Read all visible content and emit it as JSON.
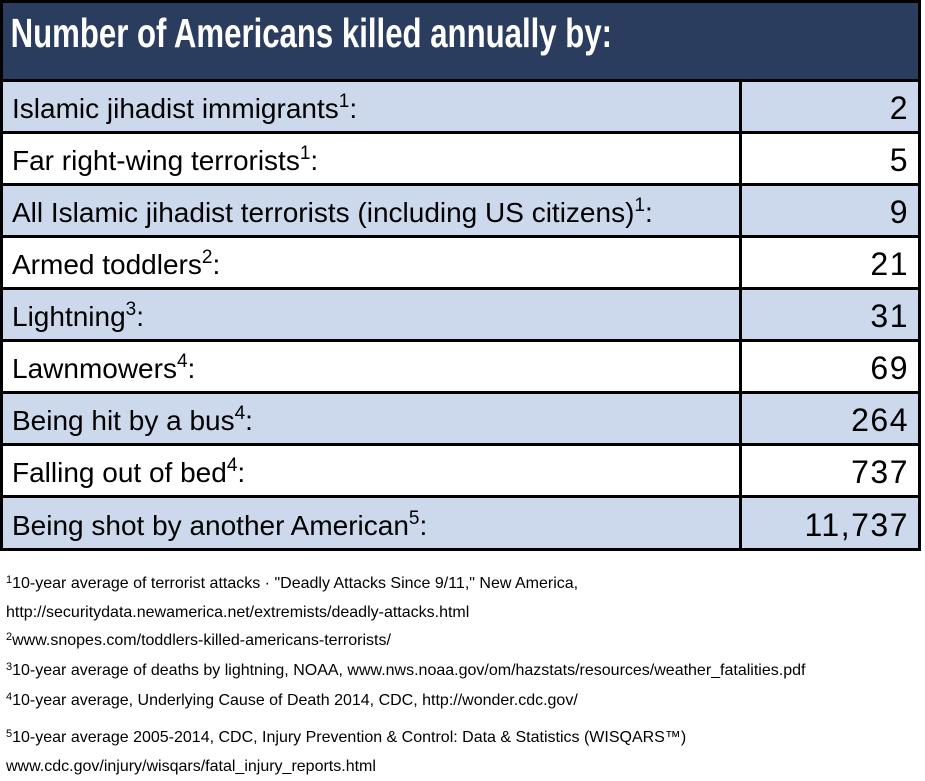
{
  "colors": {
    "header_bg": "#2b3d5f",
    "header_text": "#ffffff",
    "row_alt_bg": "#ccd9ec",
    "row_bg": "#ffffff",
    "border": "#000000",
    "text": "#000000"
  },
  "header": {
    "title": "Number of Americans killed annually by:"
  },
  "table": {
    "colon": ":",
    "rows": [
      {
        "label": "Islamic jihadist immigrants",
        "sup": "1",
        "value": "2"
      },
      {
        "label": "Far right-wing terrorists",
        "sup": "1",
        "value": "5"
      },
      {
        "label": "All Islamic jihadist terrorists (including US citizens)",
        "sup": "1",
        "value": "9"
      },
      {
        "label": "Armed toddlers",
        "sup": "2",
        "value": "21"
      },
      {
        "label": "Lightning",
        "sup": "3",
        "value": "31"
      },
      {
        "label": "Lawnmowers",
        "sup": "4",
        "value": "69"
      },
      {
        "label": "Being hit by a bus",
        "sup": "4",
        "value": "264"
      },
      {
        "label": "Falling out of bed",
        "sup": "4",
        "value": "737"
      },
      {
        "label": "Being shot by another American",
        "sup": "5",
        "value": "11,737"
      }
    ]
  },
  "footnotes": [
    {
      "sup": "1",
      "lines": [
        "10-year average of terrorist attacks · \"Deadly Attacks Since 9/11,\" New America,",
        "http://securitydata.newamerica.net/extremists/deadly-attacks.html"
      ]
    },
    {
      "sup": "2",
      "lines": [
        "www.snopes.com/toddlers-killed-americans-terrorists/"
      ]
    },
    {
      "sup": "3",
      "lines": [
        "10-year average of deaths by lightning, NOAA, www.nws.noaa.gov/om/hazstats/resources/weather_fatalities.pdf"
      ]
    },
    {
      "sup": "4",
      "lines": [
        "10-year average, Underlying Cause of Death 2014, CDC, http://wonder.cdc.gov/"
      ]
    },
    {
      "sup": "5",
      "lines": [
        "10-year average 2005-2014, CDC, Injury Prevention & Control: Data & Statistics (WISQARS™)",
        "www.cdc.gov/injury/wisqars/fatal_injury_reports.html"
      ]
    }
  ],
  "chart_data": {
    "type": "table",
    "title": "Number of Americans killed annually by:",
    "categories": [
      "Islamic jihadist immigrants",
      "Far right-wing terrorists",
      "All Islamic jihadist terrorists (including US citizens)",
      "Armed toddlers",
      "Lightning",
      "Lawnmowers",
      "Being hit by a bus",
      "Falling out of bed",
      "Being shot by another American"
    ],
    "values": [
      2,
      5,
      9,
      21,
      31,
      69,
      264,
      737,
      11737
    ],
    "layout": "two-column table, header band navy, alternating light-blue/white rows, values right-aligned"
  }
}
